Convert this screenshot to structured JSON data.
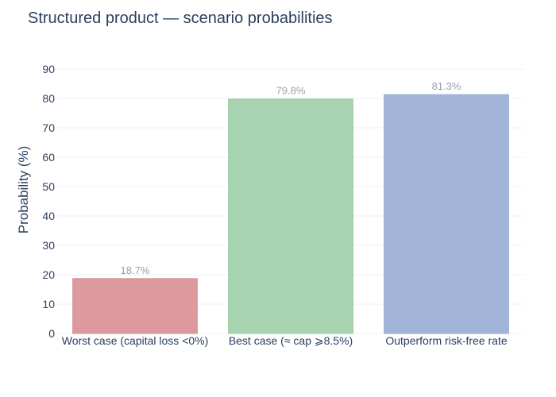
{
  "chart_data": {
    "type": "bar",
    "title": "Structured product — scenario probabilities",
    "xlabel": "",
    "ylabel": "Probability (%)",
    "ylim": [
      0,
      90
    ],
    "yticks": [
      0,
      10,
      20,
      30,
      40,
      50,
      60,
      70,
      80,
      90
    ],
    "grid": true,
    "categories": [
      "Worst case (capital loss <0%)",
      "Best case (≈ cap ⩾8.5%)",
      "Outperform risk-free rate"
    ],
    "values": [
      18.7,
      79.8,
      81.3
    ],
    "data_labels": [
      "18.7%",
      "79.8%",
      "81.3%"
    ],
    "colors": [
      "#dc9a9e",
      "#a8d3b0",
      "#a2b5d9"
    ],
    "bar_border_colors": [
      "#d68f94",
      "#9ccca5",
      "#97abd4"
    ]
  }
}
